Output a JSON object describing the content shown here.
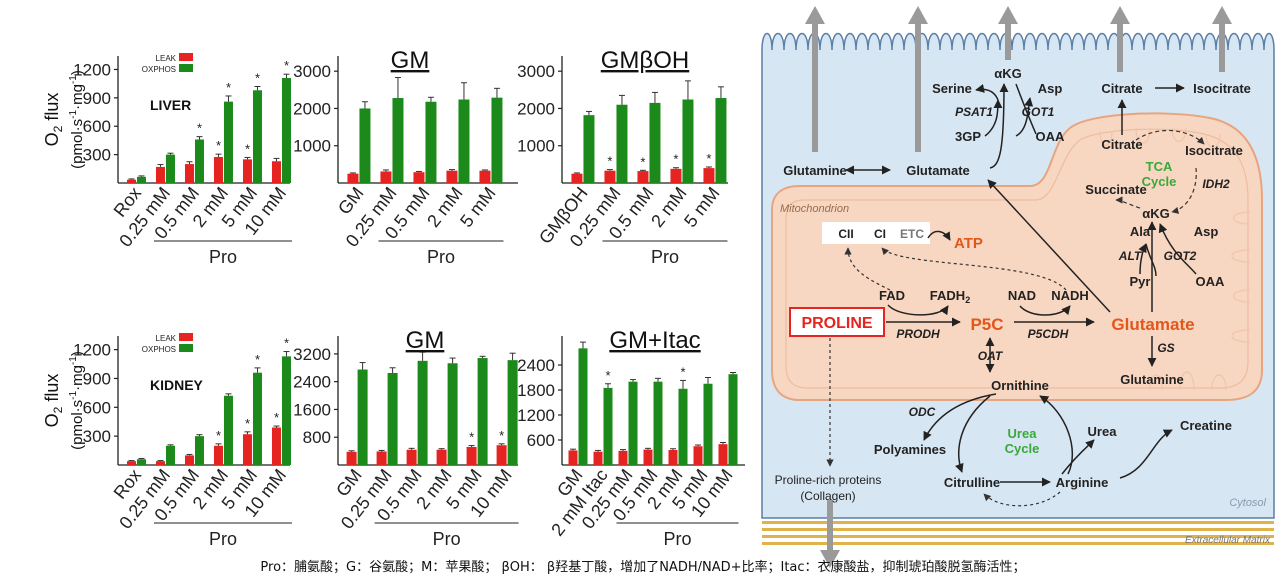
{
  "colors": {
    "leak": "#e52421",
    "oxphos": "#1b8a1b",
    "axis": "#222222",
    "panel_bg": "#d7e6f3",
    "mito": "#f8d7c2",
    "accent": "#e2571c",
    "green_text": "#3aa83a"
  },
  "chart_data": [
    {
      "type": "bar",
      "title": "",
      "panel_label": "LIVER",
      "ylabel": "O2 flux",
      "ylabel2": "(pmol·s-1·mg-1)",
      "ylim": [
        0,
        1300
      ],
      "yticks": [
        300,
        600,
        900,
        1200
      ],
      "categories": [
        "Rox",
        "0.25 mM",
        "0.5 mM",
        "2 mM",
        "5 mM",
        "10 mM"
      ],
      "group_label": "Pro",
      "group_span": [
        1,
        5
      ],
      "legend": [
        "LEAK",
        "OXPHOS"
      ],
      "series": [
        {
          "name": "LEAK",
          "values": [
            35,
            170,
            200,
            275,
            250,
            230
          ],
          "err": [
            8,
            25,
            25,
            30,
            20,
            30
          ]
        },
        {
          "name": "OXPHOS",
          "values": [
            65,
            300,
            460,
            860,
            980,
            1110
          ],
          "err": [
            10,
            15,
            30,
            60,
            40,
            40
          ]
        }
      ],
      "stars": {
        "LEAK": [
          3,
          4
        ],
        "OXPHOS": [
          2,
          3,
          4,
          5
        ]
      }
    },
    {
      "type": "bar",
      "title": "GM",
      "ylim": [
        0,
        3300
      ],
      "yticks": [
        1000,
        2000,
        3000
      ],
      "categories": [
        "GM",
        "0.25 mM",
        "0.5 mM",
        "2 mM",
        "5 mM"
      ],
      "group_label": "Pro",
      "group_span": [
        1,
        4
      ],
      "series": [
        {
          "name": "LEAK",
          "values": [
            250,
            310,
            290,
            330,
            330
          ],
          "err": [
            20,
            40,
            20,
            30,
            20
          ]
        },
        {
          "name": "OXPHOS",
          "values": [
            2000,
            2280,
            2180,
            2240,
            2290
          ],
          "err": [
            180,
            550,
            120,
            450,
            250
          ]
        }
      ],
      "stars": {
        "LEAK": [],
        "OXPHOS": []
      }
    },
    {
      "type": "bar",
      "title": "GMβOH",
      "ylim": [
        0,
        3300
      ],
      "yticks": [
        1000,
        2000,
        3000
      ],
      "categories": [
        "GMβOH",
        "0.25 mM",
        "0.5 mM",
        "2 mM",
        "5 mM"
      ],
      "group_label": "Pro",
      "group_span": [
        1,
        4
      ],
      "series": [
        {
          "name": "LEAK",
          "values": [
            250,
            330,
            320,
            380,
            400
          ],
          "err": [
            20,
            30,
            20,
            30,
            30
          ]
        },
        {
          "name": "OXPHOS",
          "values": [
            1820,
            2100,
            2150,
            2240,
            2280
          ],
          "err": [
            100,
            250,
            280,
            500,
            300
          ]
        }
      ],
      "stars": {
        "LEAK": [
          1,
          2,
          3,
          4
        ],
        "OXPHOS": []
      }
    },
    {
      "type": "bar",
      "title": "",
      "panel_label": "KIDNEY",
      "ylabel": "O2 flux",
      "ylabel2": "(pmol·s-1·mg-1)",
      "ylim": [
        0,
        1300
      ],
      "yticks": [
        300,
        600,
        900,
        1200
      ],
      "categories": [
        "Rox",
        "0.25 mM",
        "0.5 mM",
        "2 mM",
        "5 mM",
        "10 mM"
      ],
      "group_label": "Pro",
      "group_span": [
        1,
        5
      ],
      "legend": [
        "LEAK",
        "OXPHOS"
      ],
      "series": [
        {
          "name": "LEAK",
          "values": [
            40,
            40,
            100,
            200,
            320,
            390
          ],
          "err": [
            6,
            6,
            10,
            20,
            25,
            15
          ]
        },
        {
          "name": "OXPHOS",
          "values": [
            60,
            200,
            300,
            720,
            960,
            1130
          ],
          "err": [
            8,
            10,
            15,
            20,
            50,
            50
          ]
        }
      ],
      "stars": {
        "LEAK": [
          3,
          4,
          5
        ],
        "OXPHOS": [
          4,
          5
        ]
      }
    },
    {
      "type": "bar",
      "title": "GM",
      "ylim": [
        0,
        3600
      ],
      "yticks": [
        800,
        1600,
        2400,
        3200
      ],
      "categories": [
        "GM",
        "0.25 mM",
        "0.5 mM",
        "2 mM",
        "5 mM",
        "10 mM"
      ],
      "group_label": "Pro",
      "group_span": [
        1,
        5
      ],
      "series": [
        {
          "name": "LEAK",
          "values": [
            380,
            390,
            440,
            440,
            520,
            570
          ],
          "err": [
            30,
            30,
            40,
            30,
            40,
            40
          ]
        },
        {
          "name": "OXPHOS",
          "values": [
            2750,
            2650,
            3000,
            2930,
            3080,
            3020
          ],
          "err": [
            200,
            150,
            250,
            150,
            50,
            200
          ]
        }
      ],
      "stars": {
        "LEAK": [
          4,
          5
        ],
        "OXPHOS": []
      }
    },
    {
      "type": "bar",
      "title": "GM+Itac",
      "ylim": [
        0,
        3000
      ],
      "yticks": [
        600,
        1200,
        1800,
        2400
      ],
      "categories": [
        "GM",
        "2 mM Itac",
        "0.25 mM",
        "0.5 mM",
        "2 mM",
        "5 mM",
        "10 mM"
      ],
      "group_label": "Pro",
      "group_span": [
        2,
        6
      ],
      "series": [
        {
          "name": "LEAK",
          "values": [
            350,
            320,
            340,
            370,
            360,
            450,
            500
          ],
          "err": [
            30,
            30,
            30,
            30,
            30,
            30,
            40
          ]
        },
        {
          "name": "OXPHOS",
          "values": [
            2800,
            1850,
            2000,
            2000,
            1830,
            1950,
            2180
          ],
          "err": [
            150,
            100,
            50,
            80,
            200,
            150,
            40
          ]
        }
      ],
      "stars": {
        "LEAK": [],
        "OXPHOS": [
          1,
          4
        ]
      }
    }
  ],
  "diagram": {
    "labels": {
      "serine": "Serine",
      "akg_top": "αKG",
      "asp_top": "Asp",
      "psat1": "PSAT1",
      "got1": "GOT1",
      "threegp": "3GP",
      "oaa_top": "OAA",
      "citrate_top": "Citrate",
      "isocitrate_top": "Isocitrate",
      "glutamine_cyt": "Glutamine",
      "glutamate_cyt": "Glutamate",
      "citrate_tca": "Citrate",
      "isocitrate_tca": "Isocitrate",
      "tca_cycle": "TCA Cycle",
      "succinate": "Succinate",
      "akg_tca": "αKG",
      "idh2": "IDH2",
      "mitochondrion": "Mitochondrion",
      "cii": "CII",
      "ci": "CI",
      "etc": "ETC",
      "atp": "ATP",
      "ala": "Ala",
      "asp_mito": "Asp",
      "alt": "ALT",
      "got2": "GOT2",
      "pyr": "Pyr",
      "oaa_mito": "OAA",
      "fad": "FAD",
      "fadh2": "FADH2",
      "nad": "NAD",
      "nadh": "NADH",
      "proline": "PROLINE",
      "prodh": "PRODH",
      "p5c": "P5C",
      "p5cdh": "P5CDH",
      "glutamate_mito": "Glutamate",
      "gs": "GS",
      "glutamine_mito": "Glutamine",
      "oat": "OAT",
      "ornithine": "Ornithine",
      "odc": "ODC",
      "polyamines": "Polyamines",
      "urea_cycle": "Urea Cycle",
      "urea": "Urea",
      "creatine": "Creatine",
      "citrulline": "Citrulline",
      "arginine": "Arginine",
      "proline_rich": "Proline-rich proteins",
      "collagen": "(Collagen)",
      "cytosol": "Cytosol",
      "ecm": "Extracellular Matrix"
    }
  },
  "caption": "Pro：脯氨酸；G：谷氨酸；M：苹果酸； βOH： β羟基丁酸，增加了NADH/NAD+比率；Itac：衣康酸盐，抑制琥珀酸脱氢酶活性；"
}
